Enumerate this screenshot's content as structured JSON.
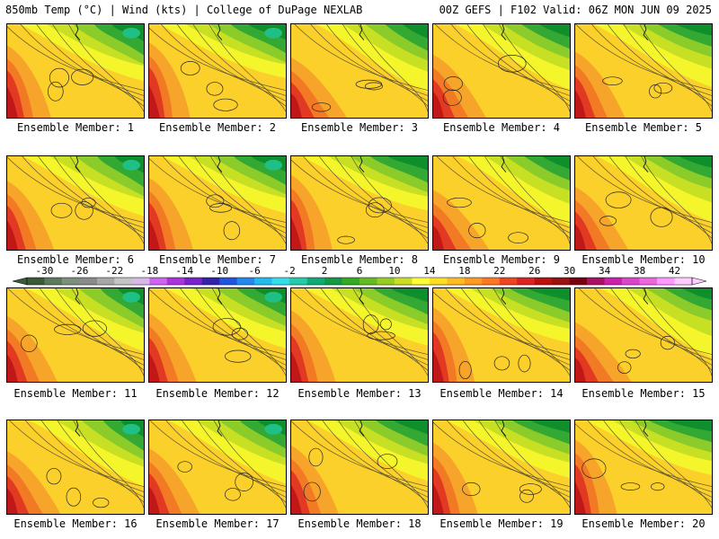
{
  "header": {
    "left": "850mb Temp (°C) | Wind (kts) | College of DuPage NEXLAB",
    "right": "00Z GEFS | F102 Valid: 06Z MON JUN 09 2025"
  },
  "caption_prefix": "Ensemble Member:",
  "members": [
    {
      "number": "1"
    },
    {
      "number": "2"
    },
    {
      "number": "3"
    },
    {
      "number": "4"
    },
    {
      "number": "5"
    },
    {
      "number": "6"
    },
    {
      "number": "7"
    },
    {
      "number": "8"
    },
    {
      "number": "9"
    },
    {
      "number": "10"
    },
    {
      "number": "11"
    },
    {
      "number": "12"
    },
    {
      "number": "13"
    },
    {
      "number": "14"
    },
    {
      "number": "15"
    },
    {
      "number": "16"
    },
    {
      "number": "17"
    },
    {
      "number": "18"
    },
    {
      "number": "19"
    },
    {
      "number": "20"
    }
  ],
  "colorbar": {
    "labels": [
      "-30",
      "-26",
      "-22",
      "-18",
      "-14",
      "-10",
      "-6",
      "-2",
      "2",
      "6",
      "10",
      "14",
      "18",
      "22",
      "26",
      "30",
      "34",
      "38",
      "42"
    ],
    "colors": [
      "#3a5a3a",
      "#5d7a5d",
      "#7e8f7e",
      "#8a8a8a",
      "#a7a7a7",
      "#c4c4c4",
      "#d8b8e8",
      "#cc66ee",
      "#aa33dd",
      "#7722cc",
      "#3322aa",
      "#2255dd",
      "#2288ee",
      "#22bbee",
      "#33ddee",
      "#22ccaa",
      "#11aa77",
      "#119944",
      "#33aa22",
      "#66bb22",
      "#99cc22",
      "#ccdd22",
      "#ffff33",
      "#ffdd22",
      "#ffbb22",
      "#ff9922",
      "#ff7722",
      "#ee4422",
      "#dd2222",
      "#bb1111",
      "#991111",
      "#770011",
      "#aa1166",
      "#cc22aa",
      "#dd44cc",
      "#ee66dd",
      "#ff99ff",
      "#ffccff"
    ]
  },
  "map_colors": {
    "green_dark": "#0e8f2c",
    "green": "#33a833",
    "green_light": "#8ccc2a",
    "yellow_green": "#c8e024",
    "yellow": "#f5f52c",
    "orange_light": "#fcd02a",
    "orange": "#f7a42a",
    "orange_dark": "#f27a25",
    "red": "#e23a22",
    "red_dark": "#c01818",
    "teal": "#1fbf86"
  }
}
